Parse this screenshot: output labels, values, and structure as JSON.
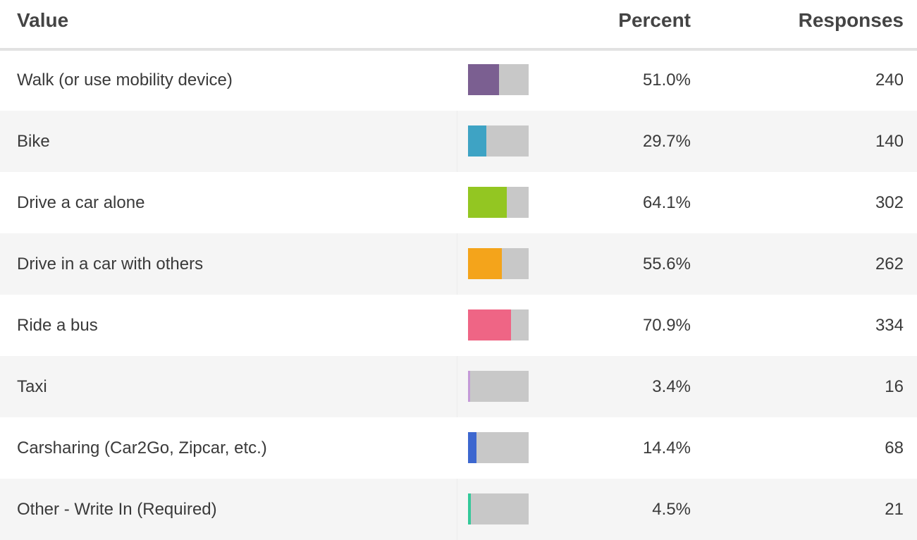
{
  "table": {
    "header": {
      "value": "Value",
      "percent": "Percent",
      "responses": "Responses"
    },
    "rows": [
      {
        "value": "Walk (or use mobility device)",
        "percent": 51.0,
        "percent_label": "51.0%",
        "responses": 240,
        "color": "#7b5f91"
      },
      {
        "value": "Bike",
        "percent": 29.7,
        "percent_label": "29.7%",
        "responses": 140,
        "color": "#3ea3c4"
      },
      {
        "value": "Drive a car alone",
        "percent": 64.1,
        "percent_label": "64.1%",
        "responses": 302,
        "color": "#93c622"
      },
      {
        "value": "Drive in a car with others",
        "percent": 55.6,
        "percent_label": "55.6%",
        "responses": 262,
        "color": "#f4a41b"
      },
      {
        "value": "Ride a bus",
        "percent": 70.9,
        "percent_label": "70.9%",
        "responses": 334,
        "color": "#ef6585"
      },
      {
        "value": "Taxi",
        "percent": 3.4,
        "percent_label": "3.4%",
        "responses": 16,
        "color": "#c49ad8"
      },
      {
        "value": "Carsharing (Car2Go, Zipcar, etc.)",
        "percent": 14.4,
        "percent_label": "14.4%",
        "responses": 68,
        "color": "#3d67cf"
      },
      {
        "value": "Other - Write In (Required)",
        "percent": 4.5,
        "percent_label": "4.5%",
        "responses": 21,
        "color": "#34c99a"
      }
    ]
  }
}
